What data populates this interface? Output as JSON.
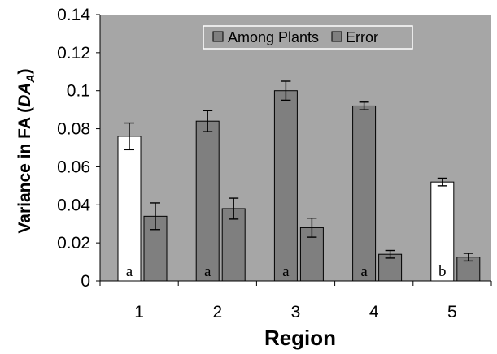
{
  "chart_data": {
    "type": "bar",
    "title": "",
    "xlabel": "Region",
    "ylabel_main": "Variance in FA (",
    "ylabel_italic": "DA",
    "ylabel_sub": "A",
    "ylabel_close": ")",
    "categories": [
      "1",
      "2",
      "3",
      "4",
      "5"
    ],
    "ylim": [
      0,
      0.14
    ],
    "yticks": [
      "0",
      "0.02",
      "0.04",
      "0.06",
      "0.08",
      "0.1",
      "0.12",
      "0.14"
    ],
    "yticks_values": [
      0,
      0.02,
      0.04,
      0.06,
      0.08,
      0.1,
      0.12,
      0.14
    ],
    "grid": false,
    "legend_position": "top-center",
    "series": [
      {
        "name": "Among Plants",
        "values": [
          0.076,
          0.084,
          0.1,
          0.092,
          0.052
        ],
        "errors": [
          0.007,
          0.0055,
          0.005,
          0.002,
          0.002
        ],
        "bar_fill": [
          "white",
          "gray",
          "gray",
          "gray",
          "white"
        ],
        "labels": [
          "a",
          "a",
          "a",
          "a",
          "b"
        ]
      },
      {
        "name": "Error",
        "values": [
          0.034,
          0.038,
          0.028,
          0.014,
          0.0125
        ],
        "errors": [
          0.007,
          0.0055,
          0.005,
          0.002,
          0.002
        ]
      }
    ],
    "colors": {
      "plot_background": "#a6a6a6",
      "bar_gray": "#7f7f7f",
      "bar_white": "#ffffff",
      "bar_stroke": "#000000"
    }
  }
}
